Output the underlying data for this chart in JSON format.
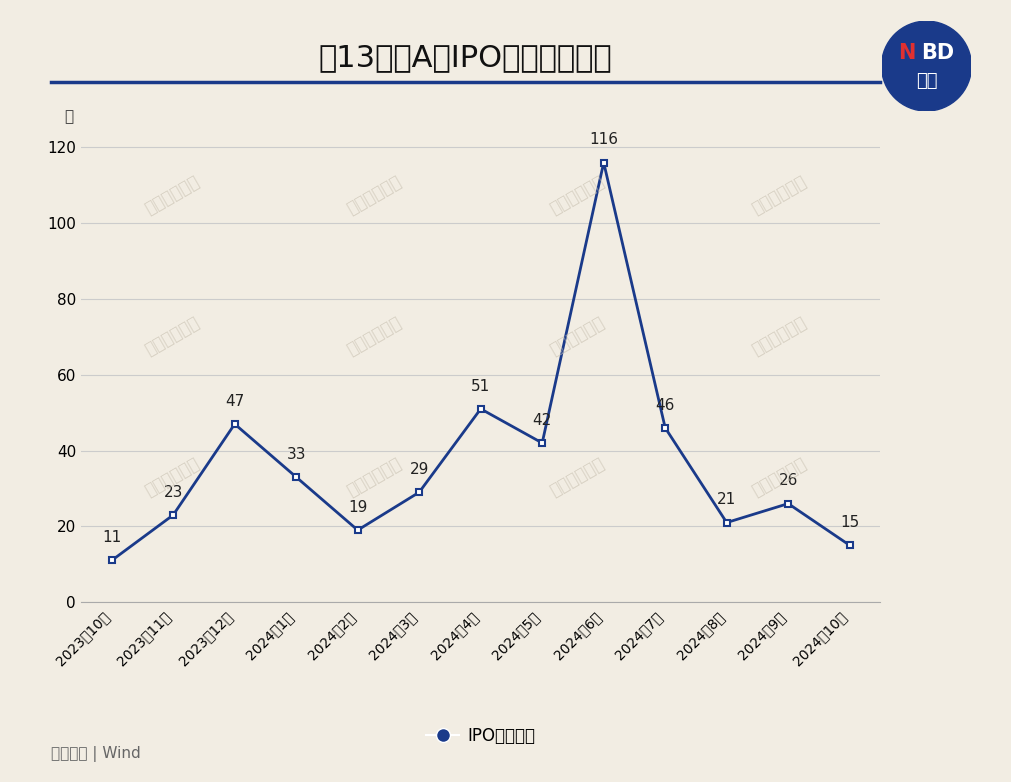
{
  "title": "近13个月A股IPO申报终止数量",
  "ylabel": "家",
  "source": "数据来源 | Wind",
  "legend_label": "IPO终止数量",
  "categories": [
    "2023年10月",
    "2023年11月",
    "2023年12月",
    "2024年1月",
    "2024年2月",
    "2024年3月",
    "2024年4月",
    "2024年5月",
    "2024年6月",
    "2024年7月",
    "2024年8月",
    "2024年9月",
    "2024年10月"
  ],
  "values": [
    11,
    23,
    47,
    33,
    19,
    29,
    51,
    42,
    116,
    46,
    21,
    26,
    15
  ],
  "ylim": [
    0,
    130
  ],
  "yticks": [
    0,
    20,
    40,
    60,
    80,
    100,
    120
  ],
  "line_color": "#1a3a8a",
  "marker_color": "#1a3a8a",
  "background_color": "#f2ede3",
  "plot_bg_color": "#f2ede3",
  "grid_color": "#cccccc",
  "title_fontsize": 22,
  "axis_fontsize": 11,
  "annotation_fontsize": 11,
  "watermark_text": "每日经济新闻",
  "watermark_color": "#c8c0b0",
  "top_line_color": "#1a3a8a",
  "nbd_circle_color": "#1a3a8a",
  "nbd_n_color": "#e03030",
  "source_color": "#666666"
}
